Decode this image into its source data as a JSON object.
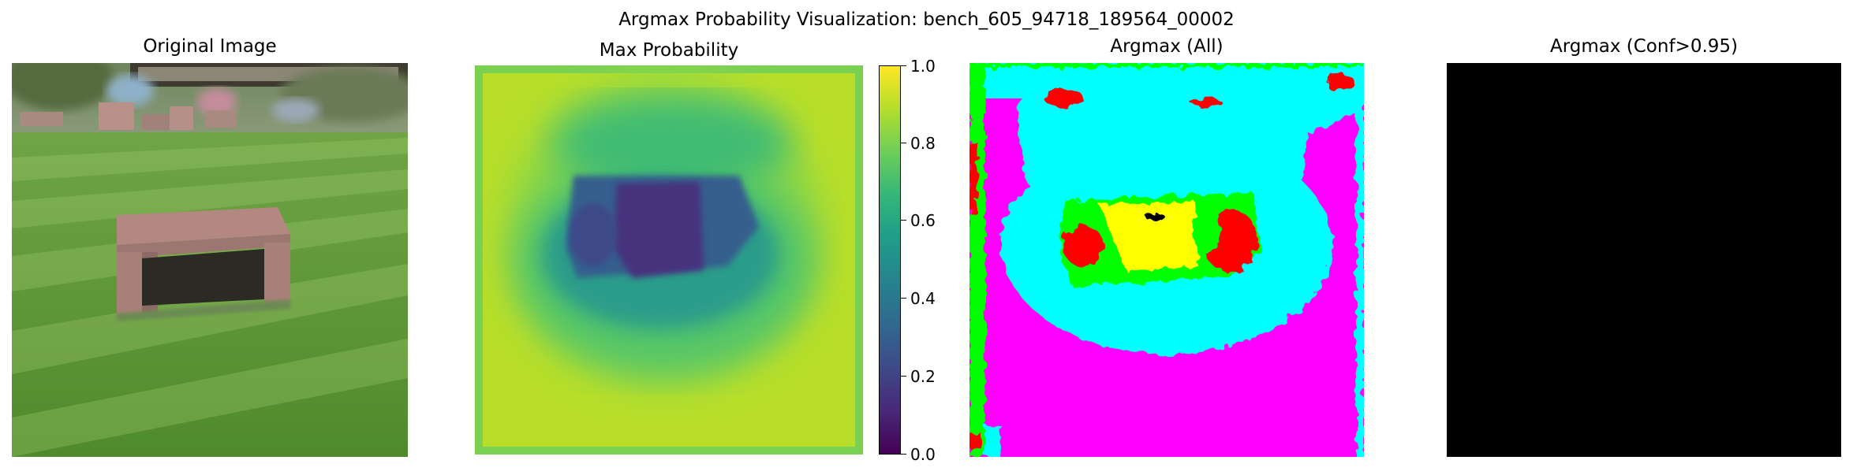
{
  "figure": {
    "suptitle": "Argmax Probability Visualization: bench_605_94718_189564_00002"
  },
  "panels": [
    {
      "title": "Original Image"
    },
    {
      "title": "Max Probability"
    },
    {
      "title": "Argmax (All)"
    },
    {
      "title": "Argmax (Conf>0.95)"
    }
  ],
  "colorbar": {
    "colormap": "viridis",
    "range": [
      0.0,
      1.0
    ],
    "ticks": [
      "0.0",
      "0.2",
      "0.4",
      "0.6",
      "0.8",
      "1.0"
    ]
  },
  "colors": {
    "grass_light": "#7fb24a",
    "grass_dark": "#4e8a2e",
    "bench": "#b48a82",
    "viridis_low": "#440154",
    "viridis_mid": "#21918c",
    "viridis_high": "#fde725",
    "class_magenta": "#ff00ff",
    "class_cyan": "#00ffff",
    "class_green": "#00ff00",
    "class_yellow": "#ffff00",
    "class_red": "#ff0000",
    "black": "#000000"
  }
}
